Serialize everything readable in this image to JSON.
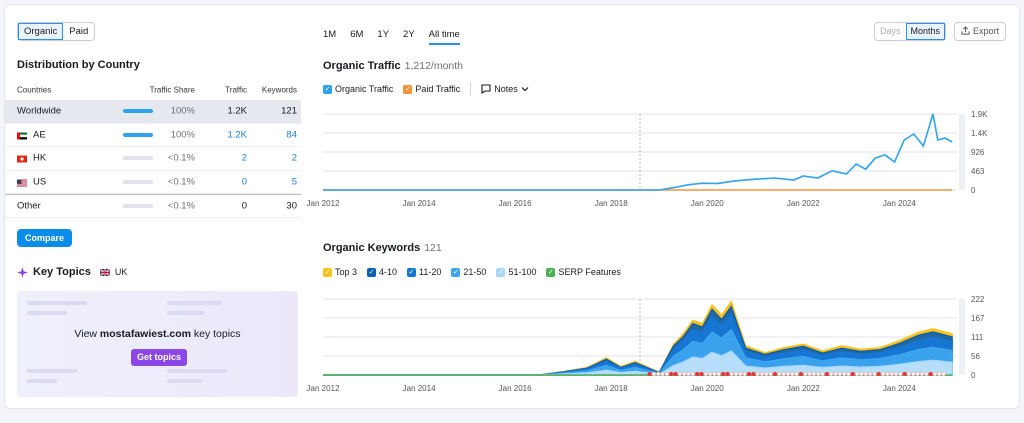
{
  "toggle": {
    "organic": "Organic",
    "paid": "Paid"
  },
  "distribution": {
    "title": "Distribution by Country",
    "headers": {
      "countries": "Countries",
      "share": "Traffic Share",
      "traffic": "Traffic",
      "keywords": "Keywords"
    },
    "rows": [
      {
        "name": "Worldwide",
        "share": "100%",
        "traffic": "1.2K",
        "keywords": "121",
        "bar": 1.0
      },
      {
        "name": "AE",
        "share": "100%",
        "traffic": "1.2K",
        "keywords": "84",
        "bar": 1.0,
        "flag": "ae-flag-icon"
      },
      {
        "name": "HK",
        "share": "<0.1%",
        "traffic": "2",
        "keywords": "2",
        "bar": 0.0,
        "flag": "hk-flag-icon"
      },
      {
        "name": "US",
        "share": "<0.1%",
        "traffic": "0",
        "keywords": "5",
        "bar": 0.0,
        "flag": "us-flag-icon"
      },
      {
        "name": "Other",
        "share": "<0.1%",
        "traffic": "0",
        "keywords": "30",
        "bar": 0.0
      }
    ],
    "compare": "Compare"
  },
  "key_topics": {
    "title": "Key Topics",
    "region": "UK",
    "view_prefix": "View",
    "domain": "mostafawiest.com",
    "view_suffix": "key topics",
    "button": "Get topics"
  },
  "ranges": [
    "1M",
    "6M",
    "1Y",
    "2Y",
    "All time"
  ],
  "active_range": "All time",
  "granularity": {
    "days": "Days",
    "months": "Months"
  },
  "export": "Export",
  "colors": {
    "organic": "#2fa2f0",
    "paid": "#f5933d",
    "top3": "#ffc21a",
    "pos4_10": "#0a5eb0",
    "pos11_20": "#1677d9",
    "pos21_50": "#3ea7f0",
    "pos51_100": "#a8d8fa",
    "serp": "#4caf50"
  },
  "traffic_chart": {
    "title": "Organic Traffic",
    "subtitle": "1,212/month",
    "legend": {
      "organic": "Organic Traffic",
      "paid": "Paid Traffic",
      "notes": "Notes"
    }
  },
  "keywords_chart": {
    "title": "Organic Keywords",
    "subtitle": "121",
    "legend": {
      "top3": "Top 3",
      "p4_10": "4-10",
      "p11_20": "11-20",
      "p21_50": "21-50",
      "p51_100": "51-100",
      "serp": "SERP Features"
    }
  },
  "chart_data": [
    {
      "type": "line",
      "x_tick_labels": [
        "Jan 2012",
        "Jan 2014",
        "Jan 2016",
        "Jan 2018",
        "Jan 2020",
        "Jan 2022",
        "Jan 2024"
      ],
      "y_tick_labels": [
        "1.9K",
        "1.4K",
        "926",
        "463",
        "0"
      ],
      "ylim": [
        0,
        1900
      ],
      "xlim": [
        2012.0,
        2025.2
      ],
      "series": [
        {
          "name": "Organic Traffic",
          "x": [
            2012.0,
            2019.0,
            2019.3,
            2019.6,
            2019.9,
            2020.2,
            2020.6,
            2021.0,
            2021.4,
            2021.8,
            2022.0,
            2022.3,
            2022.6,
            2022.9,
            2023.1,
            2023.3,
            2023.5,
            2023.7,
            2023.9,
            2024.1,
            2024.3,
            2024.5,
            2024.7,
            2024.8,
            2024.95,
            2025.1
          ],
          "values": [
            0,
            0,
            60,
            130,
            170,
            160,
            230,
            270,
            300,
            250,
            350,
            300,
            480,
            400,
            650,
            520,
            800,
            880,
            700,
            1250,
            1400,
            1100,
            1900,
            1250,
            1300,
            1200
          ]
        },
        {
          "name": "Paid Traffic",
          "x": [
            2012.0,
            2025.1
          ],
          "values": [
            0,
            0
          ]
        }
      ]
    },
    {
      "type": "area",
      "x_tick_labels": [
        "Jan 2012",
        "Jan 2014",
        "Jan 2016",
        "Jan 2018",
        "Jan 2020",
        "Jan 2022",
        "Jan 2024"
      ],
      "y_tick_labels": [
        "222",
        "167",
        "111",
        "56",
        "0"
      ],
      "ylim": [
        0,
        222
      ],
      "xlim": [
        2012.0,
        2025.2
      ],
      "x": [
        2012.0,
        2016.5,
        2017.0,
        2017.5,
        2017.9,
        2018.2,
        2018.5,
        2019.0,
        2019.3,
        2019.5,
        2019.7,
        2019.9,
        2020.1,
        2020.3,
        2020.5,
        2020.8,
        2021.2,
        2021.6,
        2022.0,
        2022.4,
        2022.8,
        2023.2,
        2023.6,
        2024.0,
        2024.4,
        2024.7,
        2025.1
      ],
      "series": [
        {
          "name": "Top 3",
          "values": [
            0,
            0,
            10,
            22,
            50,
            25,
            40,
            8,
            90,
            120,
            160,
            150,
            205,
            175,
            215,
            85,
            65,
            80,
            90,
            70,
            85,
            75,
            80,
            100,
            125,
            135,
            120
          ]
        },
        {
          "name": "4-10",
          "values": [
            0,
            0,
            9,
            20,
            46,
            22,
            36,
            7,
            85,
            112,
            150,
            140,
            192,
            162,
            200,
            78,
            60,
            74,
            84,
            64,
            78,
            69,
            74,
            92,
            116,
            126,
            111
          ]
        },
        {
          "name": "11-20",
          "values": [
            0,
            0,
            8,
            17,
            40,
            19,
            31,
            6,
            75,
            100,
            132,
            124,
            170,
            145,
            178,
            68,
            52,
            64,
            73,
            56,
            68,
            60,
            65,
            80,
            100,
            110,
            97
          ]
        },
        {
          "name": "21-50",
          "values": [
            0,
            0,
            5,
            12,
            28,
            13,
            22,
            4,
            55,
            74,
            98,
            92,
            125,
            108,
            132,
            50,
            38,
            47,
            54,
            41,
            50,
            44,
            48,
            59,
            74,
            81,
            71
          ]
        },
        {
          "name": "51-100",
          "values": [
            0,
            0,
            3,
            6,
            14,
            7,
            11,
            2,
            28,
            38,
            52,
            48,
            66,
            56,
            70,
            26,
            20,
            25,
            28,
            22,
            26,
            23,
            25,
            31,
            39,
            43,
            37
          ]
        },
        {
          "name": "SERP Features",
          "values": [
            0,
            0,
            0,
            0,
            0,
            0,
            0,
            0,
            0,
            0,
            0,
            0,
            0,
            0,
            0,
            0,
            0,
            0,
            0,
            0,
            0,
            0,
            0,
            0,
            0,
            0,
            0
          ]
        }
      ]
    }
  ]
}
